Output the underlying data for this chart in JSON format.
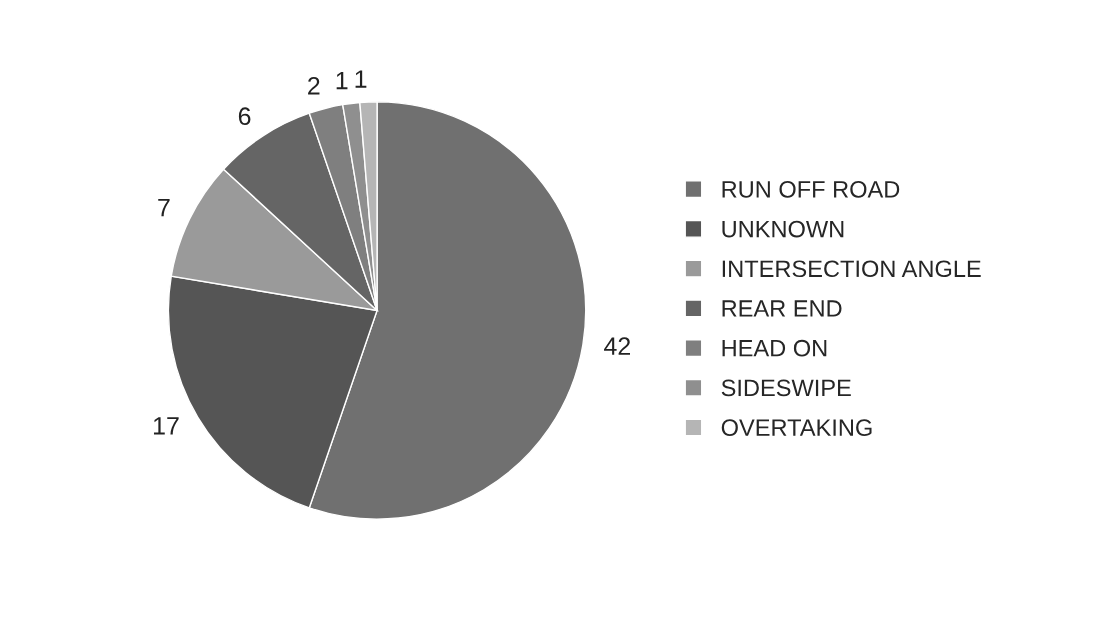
{
  "chart_data": {
    "type": "pie",
    "categories": [
      "RUN OFF ROAD",
      "UNKNOWN",
      "INTERSECTION ANGLE",
      "REAR END",
      "HEAD ON",
      "SIDESWIPE",
      "OVERTAKING"
    ],
    "values": [
      42,
      17,
      7,
      6,
      2,
      1,
      1
    ],
    "colors": [
      "#707070",
      "#555555",
      "#9a9a9a",
      "#656565",
      "#7f7f7f",
      "#8f8f8f",
      "#b5b5b5"
    ],
    "data_labels": true,
    "legend": "right"
  }
}
